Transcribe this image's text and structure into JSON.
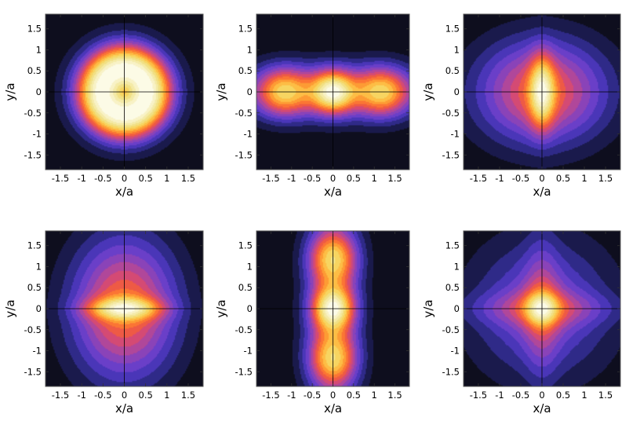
{
  "chart_data": [
    {
      "type": "heatmap",
      "panel": 1,
      "xlabel": "x/a",
      "ylabel": "y/a",
      "xlim": [
        -1.85,
        1.85
      ],
      "ylim": [
        -1.85,
        1.85
      ],
      "xticks": [
        "-1.5",
        "-1",
        "-0.5",
        "0",
        "0.5",
        "1",
        "1.5"
      ],
      "yticks": [
        "-1.5",
        "-1",
        "-0.5",
        "0",
        "0.5",
        "1",
        "1.5"
      ],
      "axes_lines": true,
      "grid": false,
      "legend": "none",
      "components": [
        {
          "x": 0,
          "y": 0,
          "sx": 0.75,
          "sy": 0.75,
          "amp": 0.55
        },
        {
          "shape": "ring",
          "x": 0,
          "y": 0,
          "r": 0.6,
          "sr": 0.38,
          "amp": 0.72
        }
      ]
    },
    {
      "type": "heatmap",
      "panel": 2,
      "xlabel": "x/a",
      "ylabel": "y/a",
      "xlim": [
        -1.85,
        1.85
      ],
      "ylim": [
        -1.85,
        1.85
      ],
      "xticks": [
        "-1.5",
        "-1",
        "-0.5",
        "0",
        "0.5",
        "1",
        "1.5"
      ],
      "yticks": [
        "-1.5",
        "-1",
        "-0.5",
        "0",
        "0.5",
        "1",
        "1.5"
      ],
      "axes_lines": true,
      "grid": false,
      "legend": "none",
      "components": [
        {
          "x": 0,
          "y": 0,
          "sx": 0.35,
          "sy": 0.35,
          "amp": 0.8
        },
        {
          "x": -1.2,
          "y": 0,
          "sx": 0.45,
          "sy": 0.4,
          "amp": 0.62
        },
        {
          "x": 1.2,
          "y": 0,
          "sx": 0.45,
          "sy": 0.4,
          "amp": 0.62
        },
        {
          "x": 0,
          "y": 0,
          "sx": 1.7,
          "sy": 0.48,
          "amp": 0.42
        }
      ]
    },
    {
      "type": "heatmap",
      "panel": 3,
      "xlabel": "x/a",
      "ylabel": "y/a",
      "xlim": [
        -1.85,
        1.85
      ],
      "ylim": [
        -1.85,
        1.85
      ],
      "xticks": [
        "-1.5",
        "-1",
        "-0.5",
        "0",
        "0.5",
        "1",
        "1.5"
      ],
      "yticks": [
        "-1.5",
        "-1",
        "-0.5",
        "0",
        "0.5",
        "1",
        "1.5"
      ],
      "axes_lines": true,
      "grid": false,
      "legend": "none",
      "components": [
        {
          "x": 0,
          "y": 0,
          "sx": 0.2,
          "sy": 0.6,
          "amp": 0.55
        },
        {
          "x": 0,
          "y": 0,
          "sx": 1.05,
          "sy": 0.85,
          "amp": 0.62
        }
      ]
    },
    {
      "type": "heatmap",
      "panel": 4,
      "xlabel": "x/a",
      "ylabel": "y/a",
      "xlim": [
        -1.85,
        1.85
      ],
      "ylim": [
        -1.85,
        1.85
      ],
      "xticks": [
        "-1.5",
        "-1",
        "-0.5",
        "0",
        "0.5",
        "1",
        "1.5"
      ],
      "yticks": [
        "-1.5",
        "-1",
        "-0.5",
        "0",
        "0.5",
        "1",
        "1.5"
      ],
      "axes_lines": true,
      "grid": false,
      "legend": "none",
      "components": [
        {
          "x": 0,
          "y": 0,
          "sx": 0.6,
          "sy": 0.18,
          "amp": 0.5
        },
        {
          "x": 0,
          "y": 0,
          "sx": 0.85,
          "sy": 1.15,
          "amp": 0.64
        }
      ]
    },
    {
      "type": "heatmap",
      "panel": 5,
      "xlabel": "x/a",
      "ylabel": "y/a",
      "xlim": [
        -1.85,
        1.85
      ],
      "ylim": [
        -1.85,
        1.85
      ],
      "xticks": [
        "-1.5",
        "-1",
        "-0.5",
        "0",
        "0.5",
        "1",
        "1.5"
      ],
      "yticks": [
        "-1.5",
        "-1",
        "-0.5",
        "0",
        "0.5",
        "1",
        "1.5"
      ],
      "axes_lines": true,
      "grid": false,
      "legend": "none",
      "components": [
        {
          "x": 0,
          "y": 0,
          "sx": 0.35,
          "sy": 0.35,
          "amp": 0.8
        },
        {
          "x": 0,
          "y": -1.2,
          "sx": 0.4,
          "sy": 0.45,
          "amp": 0.62
        },
        {
          "x": 0,
          "y": 1.2,
          "sx": 0.4,
          "sy": 0.45,
          "amp": 0.62
        },
        {
          "x": 0,
          "y": 0,
          "sx": 0.48,
          "sy": 1.9,
          "amp": 0.42
        }
      ]
    },
    {
      "type": "heatmap",
      "panel": 6,
      "xlabel": "x/a",
      "ylabel": "y/a",
      "xlim": [
        -1.85,
        1.85
      ],
      "ylim": [
        -1.85,
        1.85
      ],
      "xticks": [
        "-1.5",
        "-1",
        "-0.5",
        "0",
        "0.5",
        "1",
        "1.5"
      ],
      "yticks": [
        "-1.5",
        "-1",
        "-0.5",
        "0",
        "0.5",
        "1",
        "1.5"
      ],
      "axes_lines": true,
      "grid": false,
      "legend": "none",
      "components": [
        {
          "x": 0,
          "y": 0,
          "sx": 0.28,
          "sy": 0.28,
          "amp": 0.55
        },
        {
          "x": 0,
          "y": 0,
          "sx": 0.28,
          "sy": 1.2,
          "amp": 0.33
        },
        {
          "x": 0,
          "y": 0,
          "sx": 1.2,
          "sy": 0.28,
          "amp": 0.33
        },
        {
          "x": 0,
          "y": 0,
          "sx": 0.85,
          "sy": 0.85,
          "amp": 0.28
        },
        {
          "x": 0,
          "y": 0,
          "sx": 1.3,
          "sy": 1.3,
          "amp": 0.32
        }
      ]
    }
  ],
  "colormap": [
    "#0e0e1e",
    "#1a1a4c",
    "#2f2a88",
    "#4a36b8",
    "#6a3fc8",
    "#8a43b8",
    "#b0479a",
    "#d44a74",
    "#ee5a45",
    "#fb7534",
    "#fd9b34",
    "#fdbd45",
    "#f7d561",
    "#f1e084",
    "#f4eaa6",
    "#f8f2c6",
    "#fcfbe6"
  ]
}
